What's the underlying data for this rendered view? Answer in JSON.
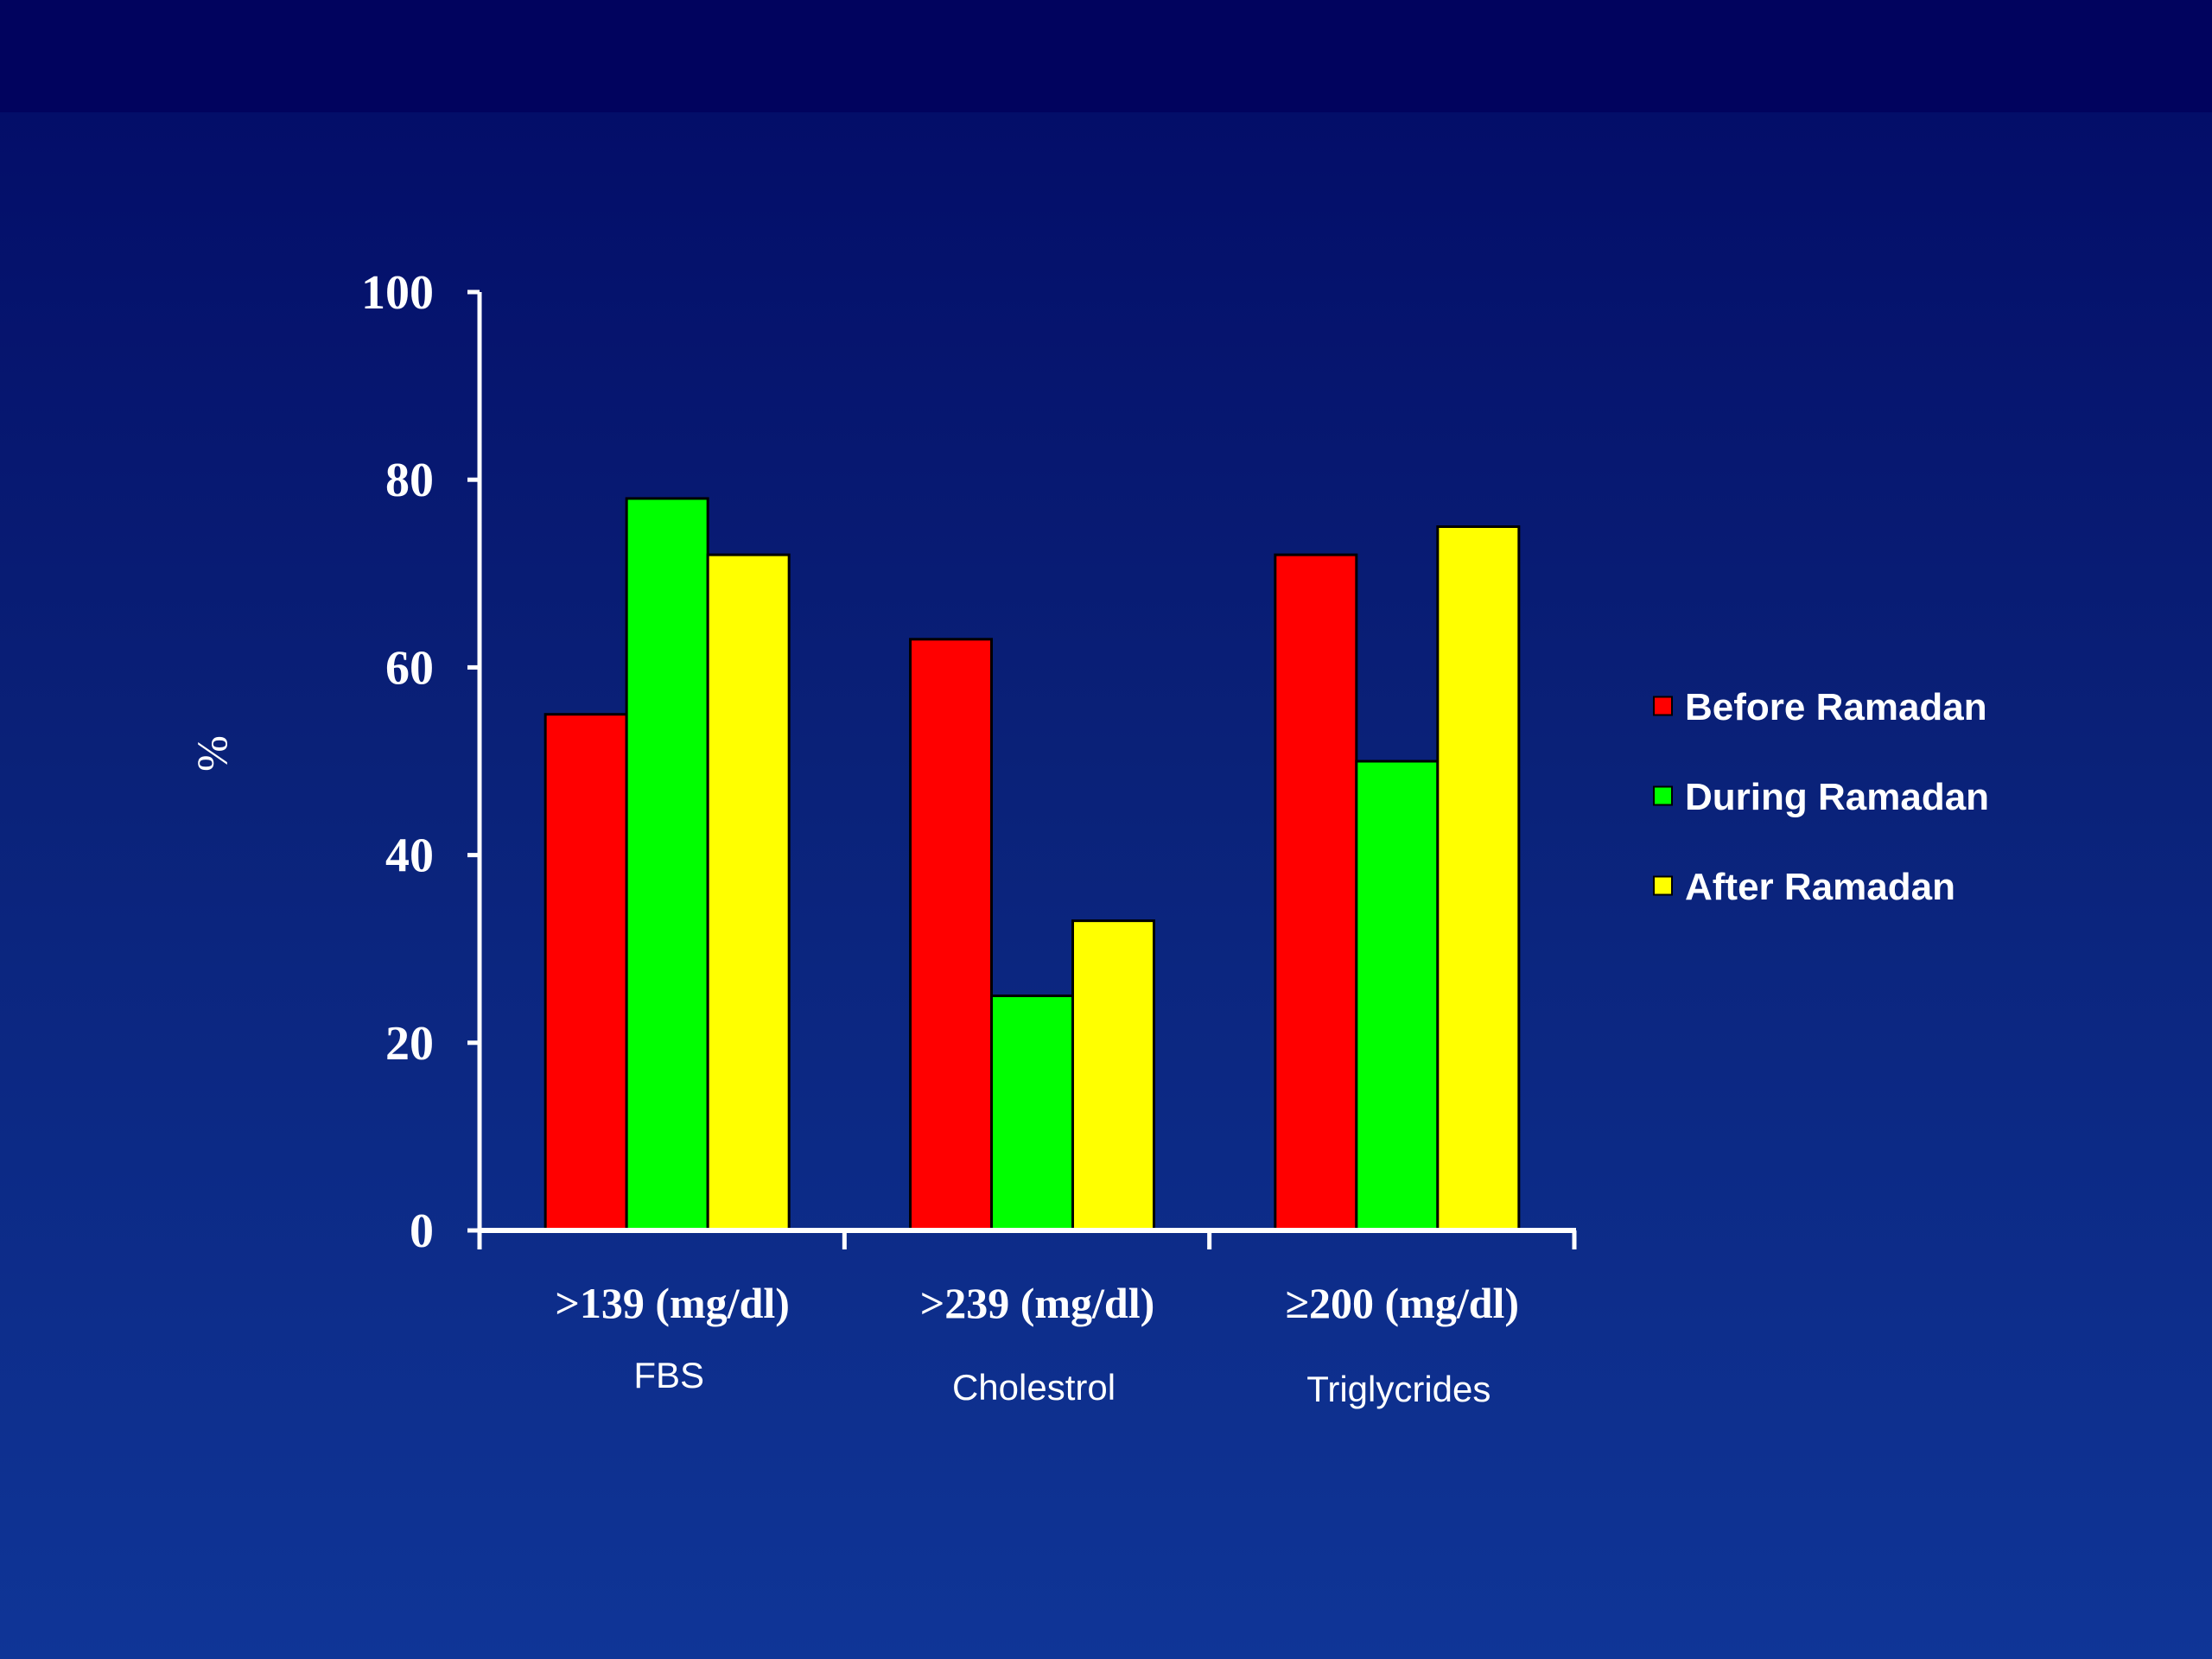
{
  "chart_data": {
    "type": "bar",
    "ylabel": "%",
    "ylim": [
      0,
      100
    ],
    "yticks": [
      0,
      20,
      40,
      60,
      80,
      100
    ],
    "categories": [
      {
        "range": ">139 (mg/dl)",
        "name": "FBS"
      },
      {
        "range": ">239 (mg/dl)",
        "name": "Cholestrol"
      },
      {
        "range": "≥200 (mg/dl)",
        "name": "Triglycrides"
      }
    ],
    "series": [
      {
        "name": "Before Ramadan",
        "color": "#ff0000",
        "values": [
          55,
          63,
          72
        ]
      },
      {
        "name": "During Ramadan",
        "color": "#00ff00",
        "values": [
          78,
          25,
          50
        ]
      },
      {
        "name": "After Ramadan",
        "color": "#ffff00",
        "values": [
          72,
          33,
          75
        ]
      }
    ],
    "legend_position": "right",
    "grid": false
  }
}
